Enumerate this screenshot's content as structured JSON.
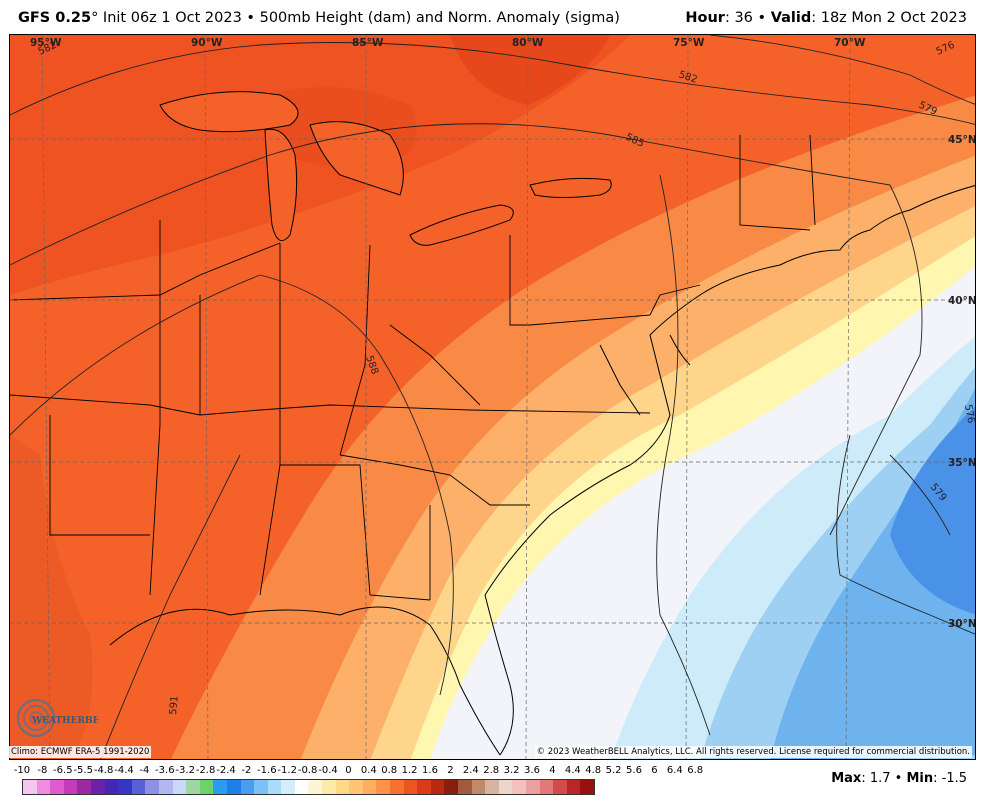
{
  "header": {
    "model": "GFS 0.25",
    "degree": "°",
    "init": " Init 06z 1 Oct 2023",
    "sep": " • ",
    "field": "500mb Height (dam) and Norm. Anomaly (sigma)",
    "hour_label": "Hour",
    "hour_value": ": 36",
    "valid_label": "Valid",
    "valid_value": ": 18z Mon 2 Oct 2023"
  },
  "map": {
    "longitude_labels": [
      "95°W",
      "90°W",
      "85°W",
      "80°W",
      "75°W",
      "70°W"
    ],
    "latitude_labels": [
      "45°N",
      "40°N",
      "35°N",
      "30°N"
    ],
    "contour_labels": [
      "582",
      "582",
      "585",
      "579",
      "576",
      "588",
      "591",
      "576",
      "579"
    ]
  },
  "footer": {
    "climo": "Climo: ECMWF ERA-5 1991-2020",
    "copyright": "© 2023 WeatherBELL Analytics, LLC. All rights reserved. License required for commercial distribution.",
    "logo_text": "WEATHERBELL",
    "max_label": "Max",
    "max_value": ": 1.7",
    "sep": " • ",
    "min_label": "Min",
    "min_value": ": -1.5"
  },
  "colorbar": {
    "ticks": [
      "-10",
      "-8",
      "-6.5",
      "-5.5",
      "-4.8",
      "-4.4",
      "-4",
      "-3.6",
      "-3.2",
      "-2.8",
      "-2.4",
      "-2",
      "-1.6",
      "-1.2",
      "-0.8",
      "-0.4",
      "0",
      "0.4",
      "0.8",
      "1.2",
      "1.6",
      "2",
      "2.4",
      "2.8",
      "3.2",
      "3.6",
      "4",
      "4.4",
      "4.8",
      "5.2",
      "5.6",
      "6",
      "6.4",
      "6.8"
    ],
    "colors": [
      "#f7c6f0",
      "#f08de0",
      "#e05ad0",
      "#c53cb8",
      "#9a2aa0",
      "#6a22a8",
      "#4427b4",
      "#3636c6",
      "#5a5fd8",
      "#8c90e6",
      "#b4b6f0",
      "#c9d8f8",
      "#9fd6a6",
      "#6cd36a",
      "#2a9df0",
      "#1e7fe8",
      "#4a9cf0",
      "#7cc0f6",
      "#a9dcf8",
      "#d3eefb",
      "#ffffff",
      "#fff4d6",
      "#ffe9a8",
      "#ffd98a",
      "#ffc474",
      "#ffae5e",
      "#ff924a",
      "#f7722f",
      "#ec5422",
      "#d83a1a",
      "#b62a14",
      "#8a1e0e",
      "#a05a3e",
      "#c08a6a",
      "#d8b4a0",
      "#ecd6cc",
      "#f4c0bc",
      "#eca0a0",
      "#e27878",
      "#d24c4c",
      "#b82626",
      "#9a1010"
    ]
  }
}
